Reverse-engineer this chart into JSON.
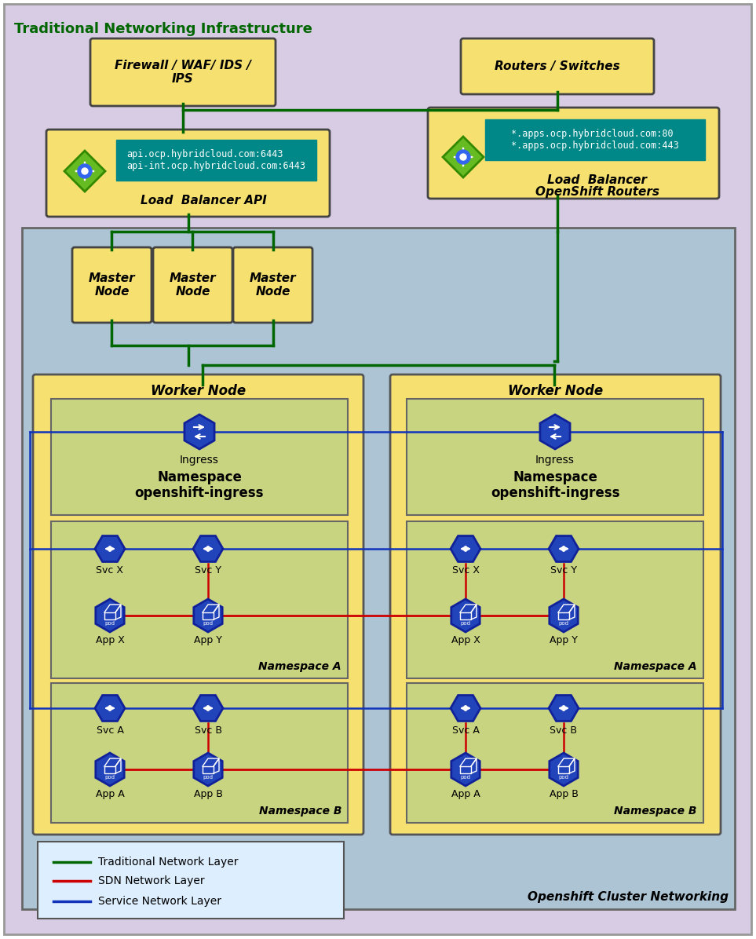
{
  "title_traditional": "Traditional Networking Infrastructure",
  "title_openshift": "Openshift Cluster Networking",
  "bg_outer": "#d8cce4",
  "bg_inner": "#adc4d4",
  "bg_worker": "#f5e070",
  "bg_namespace": "#c8d480",
  "teal_box": "#008888",
  "yellow_box": "#f5e070",
  "green_line": "#006600",
  "red_line": "#cc0000",
  "blue_line": "#1133bb",
  "firewall_text": "Firewall / WAF/ IDS /\nIPS",
  "routers_text": "Routers / Switches",
  "lb_api_text": "Load  Balancer API",
  "lb_os_line1": "Load  Balancer",
  "lb_os_line2": "OpenShift Routers",
  "api_text": "api.ocp.hybridcloud.com:6443\napi-int.ocp.hybridcloud.com:6443",
  "apps_text": "*.apps.ocp.hybridcloud.com:80\n*.apps.ocp.hybridcloud.com:443",
  "master_text": "Master\nNode",
  "worker_text": "Worker Node",
  "ns_a_text": "Namespace A",
  "ns_b_text": "Namespace B",
  "legend_green": "Traditional Network Layer",
  "legend_red": "SDN Network Layer",
  "legend_blue": "Service Network Layer"
}
